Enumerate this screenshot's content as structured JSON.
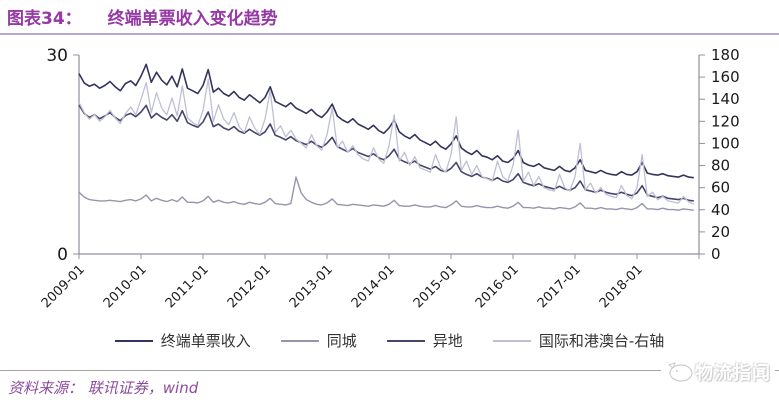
{
  "header": {
    "figure_label": "图表34：",
    "title": "终端单票收入变化趋势",
    "accent_color": "#9639a4"
  },
  "footer": {
    "source_text": "资料来源： 联讯证券，wind",
    "watermark_text": "物流指闻"
  },
  "chart_data": {
    "type": "line",
    "title": "终端单票收入变化趋势",
    "x_start": "2009-01",
    "x_tick_labels": [
      "2009-01",
      "2010-01",
      "2011-01",
      "2012-01",
      "2013-01",
      "2014-01",
      "2015-01",
      "2016-01",
      "2017-01",
      "2018-01"
    ],
    "left_axis": {
      "range": [
        0,
        30
      ],
      "ticks": [
        0,
        30
      ]
    },
    "right_axis": {
      "range": [
        0,
        180
      ],
      "ticks": [
        0,
        20,
        40,
        60,
        80,
        100,
        120,
        140,
        160,
        180
      ]
    },
    "grid": false,
    "legend_position": "bottom",
    "axis_color": "#9090a0",
    "tick_label_color": "#1a1a1a",
    "series": [
      {
        "name": "终端单票收入",
        "axis": "left",
        "color": "#33335f",
        "width": 1.6,
        "values": [
          27.2,
          25.8,
          25.3,
          25.6,
          25.0,
          25.4,
          26.0,
          25.2,
          24.6,
          25.7,
          26.1,
          25.4,
          26.8,
          28.6,
          25.9,
          27.4,
          26.2,
          25.5,
          26.8,
          25.2,
          27.9,
          25.0,
          24.6,
          24.2,
          25.4,
          27.8,
          24.4,
          25.0,
          24.2,
          23.8,
          24.5,
          23.6,
          23.2,
          24.0,
          23.4,
          22.8,
          23.6,
          25.2,
          23.0,
          22.6,
          22.2,
          22.8,
          22.0,
          21.6,
          21.2,
          21.8,
          21.0,
          20.6,
          21.4,
          22.6,
          20.8,
          20.2,
          19.8,
          20.4,
          19.6,
          19.2,
          18.8,
          19.4,
          18.6,
          18.2,
          19.0,
          20.2,
          18.4,
          17.8,
          17.4,
          18.0,
          17.2,
          16.8,
          16.4,
          17.0,
          16.2,
          15.8,
          16.6,
          17.8,
          16.0,
          15.4,
          15.0,
          15.6,
          14.8,
          14.6,
          14.2,
          14.8,
          14.0,
          13.8,
          14.4,
          15.6,
          13.8,
          13.4,
          13.2,
          13.6,
          13.0,
          12.8,
          12.6,
          13.2,
          12.6,
          12.4,
          13.0,
          14.2,
          12.6,
          12.4,
          12.2,
          12.6,
          12.2,
          12.0,
          11.9,
          12.4,
          12.0,
          11.9,
          12.4,
          13.8,
          12.2,
          12.0,
          11.9,
          12.1,
          11.8,
          11.7,
          11.6,
          11.9,
          11.6,
          11.5
        ]
      },
      {
        "name": "同城",
        "axis": "left",
        "color": "#9595ad",
        "width": 1.4,
        "values": [
          9.3,
          8.6,
          8.2,
          8.1,
          8.0,
          8.0,
          8.1,
          8.0,
          7.9,
          8.1,
          8.2,
          8.0,
          8.3,
          8.9,
          8.0,
          8.4,
          8.1,
          7.9,
          8.2,
          7.9,
          8.6,
          7.8,
          7.8,
          7.7,
          8.0,
          8.7,
          7.8,
          8.1,
          7.8,
          7.7,
          7.9,
          7.6,
          7.5,
          7.8,
          7.6,
          7.5,
          7.8,
          8.4,
          7.6,
          7.5,
          7.4,
          7.6,
          11.6,
          9.2,
          8.2,
          7.8,
          7.5,
          7.4,
          7.7,
          8.3,
          7.5,
          7.4,
          7.3,
          7.5,
          7.4,
          7.3,
          7.2,
          7.4,
          7.3,
          7.2,
          7.5,
          8.1,
          7.3,
          7.2,
          7.2,
          7.4,
          7.2,
          7.1,
          7.1,
          7.3,
          7.1,
          7.0,
          7.4,
          8.0,
          7.2,
          7.1,
          7.1,
          7.3,
          7.1,
          7.0,
          7.0,
          7.2,
          7.0,
          6.9,
          7.2,
          7.8,
          7.0,
          7.0,
          6.9,
          7.1,
          6.9,
          6.9,
          6.8,
          7.0,
          6.9,
          6.8,
          7.1,
          7.7,
          6.9,
          6.9,
          6.8,
          7.0,
          6.8,
          6.8,
          6.7,
          6.9,
          6.8,
          6.7,
          7.0,
          7.6,
          6.8,
          6.8,
          6.7,
          6.9,
          6.7,
          6.7,
          6.6,
          6.8,
          6.7,
          6.6
        ]
      },
      {
        "name": "异地",
        "axis": "left",
        "color": "#45456e",
        "width": 1.6,
        "values": [
          22.5,
          21.2,
          20.6,
          21.0,
          20.4,
          20.8,
          21.3,
          20.6,
          20.1,
          20.9,
          21.2,
          20.7,
          21.4,
          22.4,
          20.5,
          21.2,
          20.6,
          20.2,
          21.0,
          20.0,
          21.6,
          19.8,
          19.4,
          19.1,
          19.9,
          21.4,
          19.2,
          19.6,
          19.0,
          18.7,
          19.2,
          18.5,
          18.2,
          18.8,
          18.3,
          17.9,
          18.4,
          19.6,
          17.9,
          17.6,
          17.2,
          17.7,
          17.1,
          16.8,
          16.5,
          17.0,
          16.4,
          16.1,
          16.7,
          17.6,
          16.2,
          15.8,
          15.4,
          15.9,
          15.3,
          15.0,
          14.7,
          15.1,
          14.5,
          14.2,
          14.8,
          15.8,
          14.3,
          13.9,
          13.6,
          14.0,
          13.4,
          13.1,
          12.8,
          13.2,
          12.6,
          12.4,
          12.9,
          13.8,
          12.4,
          12.0,
          11.7,
          12.1,
          11.6,
          11.4,
          11.1,
          11.5,
          11.0,
          10.8,
          11.2,
          12.1,
          10.8,
          10.5,
          10.3,
          10.6,
          10.2,
          10.0,
          9.8,
          10.2,
          9.8,
          9.6,
          10.0,
          11.0,
          9.7,
          9.5,
          9.3,
          9.6,
          9.3,
          9.1,
          9.0,
          9.3,
          9.0,
          8.8,
          9.2,
          10.3,
          8.9,
          8.7,
          8.5,
          8.7,
          8.4,
          8.3,
          8.2,
          8.4,
          8.1,
          8.0
        ]
      },
      {
        "name": "国际和港澳台-右轴",
        "axis": "right",
        "color": "#bfbfd4",
        "width": 1.3,
        "values": [
          137,
          128,
          122,
          126,
          120,
          124,
          130,
          123,
          118,
          127,
          133,
          126,
          140,
          155,
          128,
          146,
          132,
          126,
          141,
          125,
          152,
          123,
          119,
          116,
          130,
          158,
          120,
          135,
          122,
          117,
          128,
          115,
          110,
          124,
          114,
          108,
          122,
          148,
          110,
          116,
          106,
          112,
          104,
          100,
          96,
          108,
          98,
          94,
          108,
          132,
          96,
          102,
          92,
          98,
          90,
          86,
          84,
          96,
          86,
          82,
          98,
          126,
          84,
          92,
          80,
          88,
          78,
          76,
          74,
          90,
          78,
          74,
          90,
          124,
          76,
          84,
          72,
          80,
          70,
          68,
          66,
          84,
          70,
          66,
          80,
          112,
          66,
          74,
          62,
          70,
          60,
          58,
          57,
          72,
          60,
          57,
          70,
          100,
          58,
          64,
          55,
          60,
          54,
          52,
          51,
          62,
          53,
          50,
          60,
          90,
          52,
          56,
          49,
          52,
          48,
          47,
          46,
          52,
          47,
          45
        ]
      }
    ]
  }
}
